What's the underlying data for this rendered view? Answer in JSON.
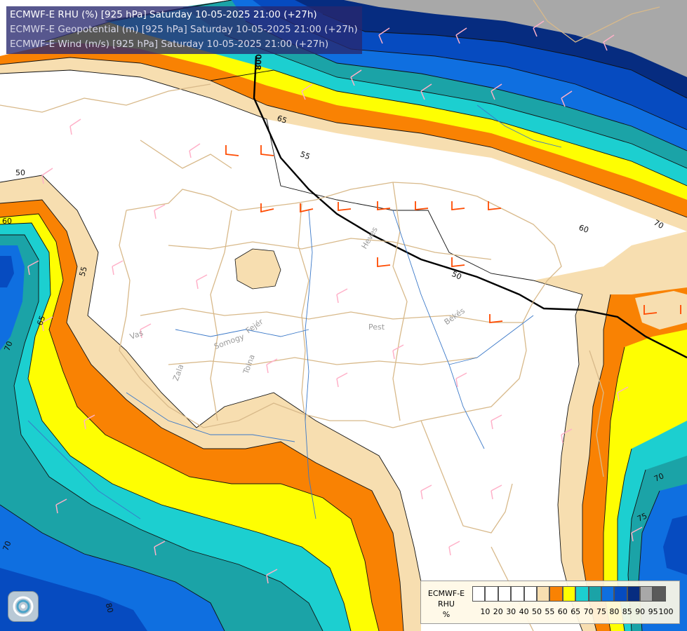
{
  "titles": {
    "rhu": "ECMWF-E RHU (%) [925 hPa] Saturday 10-05-2025 21:00 (+27h)",
    "geopotential": "ECMWF-E Geopotential (m) [925 hPa] Saturday 10-05-2025 21:00 (+27h)",
    "wind": "ECMWF-E Wind (m/s) [925 hPa] Saturday 10-05-2025 21:00 (+27h)"
  },
  "legend": {
    "model": "ECMWF-E",
    "variable": "RHU",
    "unit": "%",
    "ticks": [
      "10",
      "20",
      "30",
      "40",
      "50",
      "55",
      "60",
      "65",
      "70",
      "75",
      "80",
      "85",
      "90",
      "95",
      "100"
    ],
    "colors": [
      "#ffffff",
      "#ffffff",
      "#ffffff",
      "#ffffff",
      "#ffffff",
      "#f7deb0",
      "#f98203",
      "#fefe02",
      "#1ccfd0",
      "#1ba3a7",
      "#0f6fe0",
      "#064bc0",
      "#062c80",
      "#a8a8a8",
      "#5a5a5a"
    ]
  },
  "contour_labels": {
    "rhu": [
      "50",
      "55",
      "60",
      "65",
      "70",
      "75",
      "80"
    ],
    "geopotential": [
      "800"
    ]
  },
  "region_labels": [
    "Pest",
    "Heves",
    "Békés",
    "Vas",
    "Zala",
    "Somogy",
    "Tolna",
    "Fejér"
  ],
  "colors": {
    "contour": "#111111",
    "border": "#d8b98a",
    "river": "#3a78c8",
    "wind_barb": "#ffb0c8",
    "wind_barb_strong": "#ff4a00"
  }
}
